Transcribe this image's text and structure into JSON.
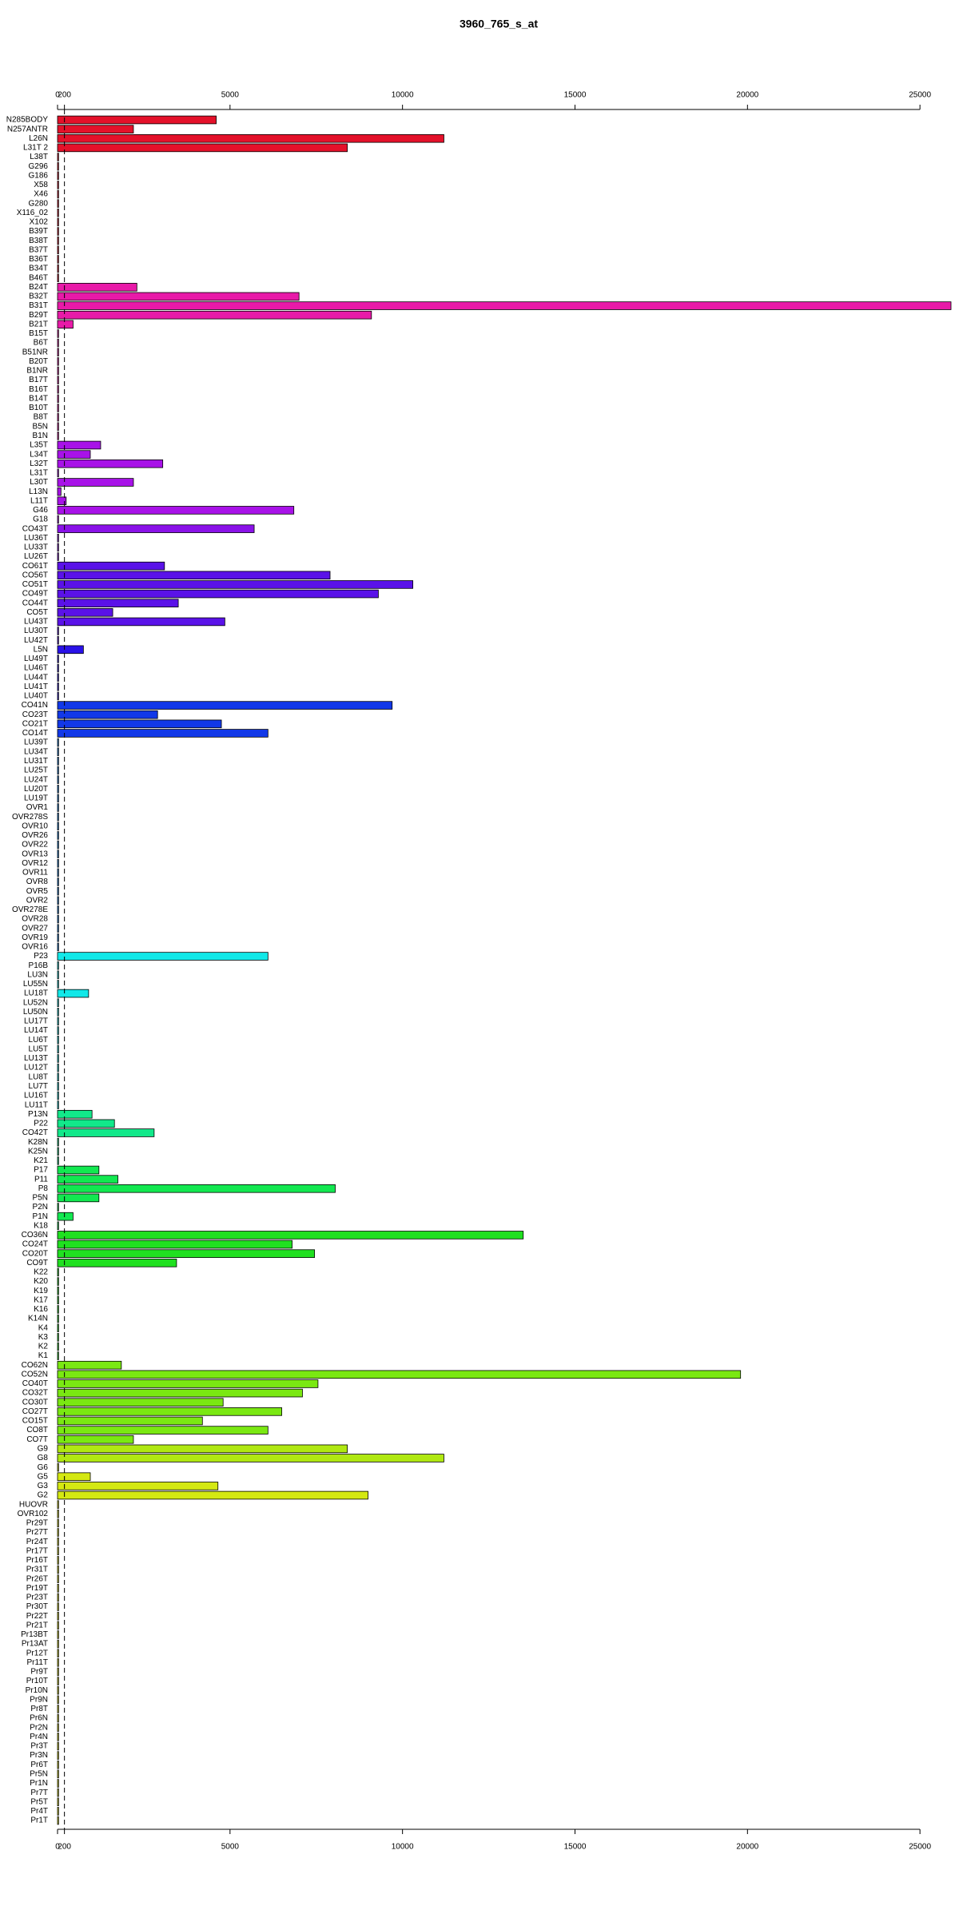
{
  "chart_data": {
    "type": "barh",
    "title": "3960_765_s_at",
    "categories": [
      "N285BODY",
      "N257ANTR",
      "L26N",
      "L31T 2",
      "L38T",
      "G296",
      "G186",
      "X58",
      "X46",
      "G280",
      "X116_02",
      "X102",
      "B39T",
      "B38T",
      "B37T",
      "B36T",
      "B34T",
      "B46T",
      "B24T",
      "B32T",
      "B31T",
      "B29T",
      "B21T",
      "B15T",
      "B6T",
      "B51NR",
      "B20T",
      "B1NR",
      "B17T",
      "B16T",
      "B14T",
      "B10T",
      "B8T",
      "B5N",
      "B1N",
      "L35T",
      "L34T",
      "L32T",
      "L31T",
      "L30T",
      "L13N",
      "L11T",
      "G46",
      "G18",
      "CO43T",
      "LU36T",
      "LU33T",
      "LU26T",
      "CO61T",
      "CO56T",
      "CO51T",
      "CO49T",
      "CO44T",
      "CO5T",
      "LU43T",
      "LU30T",
      "LU42T",
      "L5N",
      "LU49T",
      "LU46T",
      "LU44T",
      "LU41T",
      "LU40T",
      "CO41N",
      "CO23T",
      "CO21T",
      "CO14T",
      "LU39T",
      "LU34T",
      "LU31T",
      "LU25T",
      "LU24T",
      "LU20T",
      "LU19T",
      "OVR1",
      "OVR278S",
      "OVR10",
      "OVR26",
      "OVR22",
      "OVR13",
      "OVR12",
      "OVR11",
      "OVR8",
      "OVR5",
      "OVR2",
      "OVR278E",
      "OVR28",
      "OVR27",
      "OVR19",
      "OVR16",
      "P23",
      "P16B",
      "LU3N",
      "LU55N",
      "LU18T",
      "LU52N",
      "LU50N",
      "LU17T",
      "LU14T",
      "LU6T",
      "LU5T",
      "LU13T",
      "LU12T",
      "LU8T",
      "LU7T",
      "LU16T",
      "LU11T",
      "P13N",
      "P22",
      "CO42T",
      "K28N",
      "K25N",
      "K21",
      "P17",
      "P11",
      "P8",
      "P5N",
      "P2N",
      "P1N",
      "K18",
      "CO36N",
      "CO24T",
      "CO20T",
      "CO9T",
      "K22",
      "K20",
      "K19",
      "K17",
      "K16",
      "K14N",
      "K4",
      "K3",
      "K2",
      "K1",
      "CO62N",
      "CO52N",
      "CO40T",
      "CO32T",
      "CO30T",
      "CO27T",
      "CO15T",
      "CO8T",
      "CO7T",
      "G9",
      "G8",
      "G6",
      "G5",
      "G3",
      "G2",
      "HUOVR",
      "OVR102",
      "Pr29T",
      "Pr27T",
      "Pr24T",
      "Pr17T",
      "Pr16T",
      "Pr31T",
      "Pr26T",
      "Pr19T",
      "Pr23T",
      "Pr30T",
      "Pr22T",
      "Pr21T",
      "Pr13BT",
      "Pr13AT",
      "Pr12T",
      "Pr11T",
      "Pr9T",
      "Pr10T",
      "Pr10N",
      "Pr9N",
      "Pr8T",
      "Pr6N",
      "Pr2N",
      "Pr4N",
      "Pr3T",
      "Pr3N",
      "Pr6T",
      "Pr5N",
      "Pr1N",
      "Pr7T",
      "Pr5T",
      "Pr4T",
      "Pr1T"
    ],
    "values": [
      4600,
      2200,
      11200,
      8400,
      30,
      30,
      30,
      30,
      30,
      30,
      30,
      30,
      30,
      30,
      30,
      30,
      30,
      30,
      2300,
      7000,
      25900,
      9100,
      450,
      30,
      30,
      30,
      30,
      30,
      30,
      30,
      30,
      30,
      30,
      30,
      30,
      1250,
      950,
      3050,
      30,
      2200,
      100,
      250,
      6850,
      30,
      5700,
      30,
      30,
      30,
      3100,
      7900,
      10300,
      9300,
      3500,
      1600,
      4850,
      30,
      30,
      750,
      30,
      30,
      30,
      30,
      30,
      9700,
      2900,
      4750,
      6100,
      30,
      30,
      30,
      30,
      30,
      30,
      30,
      30,
      30,
      30,
      30,
      30,
      30,
      30,
      30,
      30,
      30,
      30,
      30,
      30,
      30,
      30,
      30,
      6100,
      30,
      30,
      30,
      900,
      30,
      30,
      30,
      30,
      30,
      30,
      30,
      30,
      30,
      30,
      30,
      30,
      1000,
      1650,
      2800,
      30,
      30,
      30,
      1200,
      1750,
      8050,
      1200,
      30,
      450,
      30,
      13500,
      6800,
      7450,
      3450,
      30,
      30,
      30,
      30,
      30,
      30,
      30,
      30,
      30,
      30,
      1850,
      19800,
      7550,
      7100,
      4800,
      6500,
      4200,
      6100,
      2200,
      8400,
      11200,
      30,
      950,
      4650,
      9000,
      30,
      30,
      30,
      30,
      30,
      30,
      30,
      30,
      30,
      30,
      30,
      30,
      30,
      30,
      30,
      30,
      30,
      30,
      30,
      30,
      30,
      30,
      30,
      30,
      30,
      30,
      30,
      30,
      30,
      30,
      30,
      30,
      30,
      30,
      30
    ],
    "colors": [
      "#e4112a",
      "#e4112a",
      "#e4112a",
      "#e4112a",
      "#e4112a",
      "#e4112a",
      "#e4112a",
      "#e4112a",
      "#e4112a",
      "#e4112a",
      "#e4112a",
      "#e4112a",
      "#e4112a",
      "#e4112a",
      "#e4112a",
      "#e4112a",
      "#e4112a",
      "#e4112a",
      "#e81aa8",
      "#e81aa8",
      "#e81aa8",
      "#e81aa8",
      "#e81aa8",
      "#e81aa8",
      "#e81aa8",
      "#e81aa8",
      "#e81aa8",
      "#e81aa8",
      "#e81aa8",
      "#e81aa8",
      "#e81aa8",
      "#e81aa8",
      "#e81aa8",
      "#e81aa8",
      "#e81aa8",
      "#a812e8",
      "#a812e8",
      "#a812e8",
      "#a812e8",
      "#a812e8",
      "#a812e8",
      "#a812e8",
      "#a812e8",
      "#a812e8",
      "#8a12e8",
      "#8a12e8",
      "#8a12e8",
      "#8a12e8",
      "#5a12e8",
      "#5a12e8",
      "#5a12e8",
      "#5a12e8",
      "#5a12e8",
      "#5a12e8",
      "#5a12e8",
      "#5a12e8",
      "#5a12e8",
      "#2a12e8",
      "#2a12e8",
      "#2a12e8",
      "#2a12e8",
      "#2a12e8",
      "#2a12e8",
      "#1238e8",
      "#1238e8",
      "#1238e8",
      "#1238e8",
      "#1280e8",
      "#1280e8",
      "#1280e8",
      "#1280e8",
      "#1280e8",
      "#1280e8",
      "#1280e8",
      "#1280e8",
      "#1280e8",
      "#1280e8",
      "#1280e8",
      "#1280e8",
      "#1280e8",
      "#1280e8",
      "#1280e8",
      "#1280e8",
      "#1280e8",
      "#1280e8",
      "#1280e8",
      "#1280e8",
      "#1280e8",
      "#1280e8",
      "#1280e8",
      "#12e8e8",
      "#12e8e8",
      "#12e8e8",
      "#12e8e8",
      "#12e8e8",
      "#12e8e8",
      "#12e8e8",
      "#12e8e8",
      "#12e8e8",
      "#12e8e8",
      "#12e8e8",
      "#12e8e8",
      "#12e8e8",
      "#12e8e8",
      "#12e8e8",
      "#12e8e8",
      "#12e8e8",
      "#12e88a",
      "#12e88a",
      "#12e88a",
      "#12e88a",
      "#12e88a",
      "#12e88a",
      "#12e850",
      "#12e850",
      "#12e850",
      "#12e850",
      "#12e850",
      "#12e850",
      "#12e850",
      "#20e020",
      "#20e020",
      "#20e020",
      "#20e020",
      "#20e020",
      "#20e020",
      "#20e020",
      "#20e020",
      "#20e020",
      "#20e020",
      "#20e020",
      "#20e020",
      "#20e020",
      "#20e020",
      "#7ae812",
      "#7ae812",
      "#7ae812",
      "#7ae812",
      "#7ae812",
      "#7ae812",
      "#7ae812",
      "#7ae812",
      "#7ae812",
      "#b0e812",
      "#b0e812",
      "#d4e812",
      "#d4e812",
      "#d4e812",
      "#d4e812",
      "#e8e812",
      "#e8e812",
      "#e8e812",
      "#e8e812",
      "#e8e812",
      "#e8e812",
      "#e8e812",
      "#e8e812",
      "#e8e812",
      "#e8e812",
      "#e8e812",
      "#e8e812",
      "#e8e812",
      "#e8e812",
      "#e8e812",
      "#e8e812",
      "#e8e812",
      "#e8e812",
      "#e8e812",
      "#e8e812",
      "#e8e812",
      "#e8e812",
      "#e8e812",
      "#e8e812",
      "#e8e812",
      "#e8e812",
      "#e8e812",
      "#e8e812",
      "#e8e812",
      "#e8e812",
      "#e8e812",
      "#e8e812",
      "#e8e812",
      "#e8e812",
      "#e8e812"
    ],
    "xlim": [
      0,
      25900
    ],
    "xticks": [
      0,
      200,
      5000,
      10000,
      15000,
      20000,
      25000
    ],
    "reference_line": 200
  }
}
